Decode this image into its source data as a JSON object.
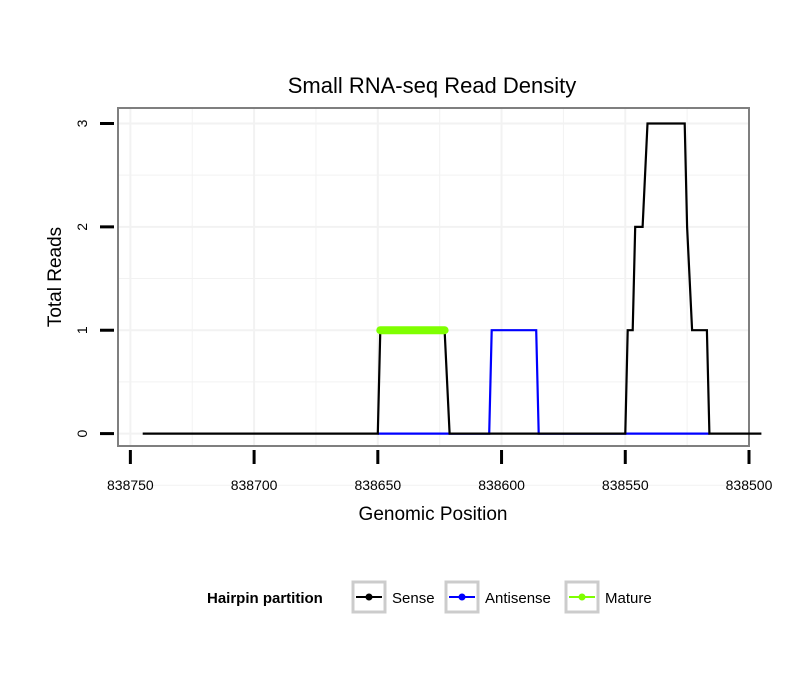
{
  "chart_data": {
    "type": "line",
    "title": "Small RNA-seq Read Density",
    "xlabel": "Genomic Position",
    "ylabel": "Total Reads",
    "x_reversed": true,
    "xlim": [
      838755,
      838500
    ],
    "ylim": [
      -0.12,
      3.15
    ],
    "x_ticks": [
      838750,
      838700,
      838650,
      838600,
      838550,
      838500
    ],
    "x_tick_labels": [
      "838750",
      "838700",
      "838650",
      "838600",
      "838550",
      "838500"
    ],
    "y_ticks": [
      0,
      1,
      2,
      3
    ],
    "y_tick_labels": [
      "0",
      "1",
      "2",
      "3"
    ],
    "legend": {
      "title": "Hairpin partition",
      "position": "bottom",
      "entries": [
        "Sense",
        "Antisense",
        "Mature"
      ]
    },
    "series": [
      {
        "name": "Sense",
        "color": "#000000",
        "points": [
          [
            838745,
            0
          ],
          [
            838650,
            0
          ],
          [
            838649,
            1
          ],
          [
            838623,
            1
          ],
          [
            838621,
            0
          ],
          [
            838550,
            0
          ],
          [
            838549,
            1
          ],
          [
            838547,
            1
          ],
          [
            838546,
            2
          ],
          [
            838543,
            2
          ],
          [
            838541,
            3
          ],
          [
            838526,
            3
          ],
          [
            838525,
            2
          ],
          [
            838523,
            1
          ],
          [
            838517,
            1
          ],
          [
            838516,
            0
          ],
          [
            838495,
            0
          ]
        ]
      },
      {
        "name": "Antisense",
        "color": "#0000ff",
        "points": [
          [
            838650,
            0
          ],
          [
            838605,
            0
          ],
          [
            838604,
            1
          ],
          [
            838586,
            1
          ],
          [
            838585,
            0
          ],
          [
            838550,
            0
          ],
          [
            838549,
            0
          ],
          [
            838516,
            0
          ]
        ]
      },
      {
        "name": "Mature",
        "color": "#7fff00",
        "points": [
          [
            838649,
            1
          ],
          [
            838623,
            1
          ]
        ]
      }
    ]
  }
}
